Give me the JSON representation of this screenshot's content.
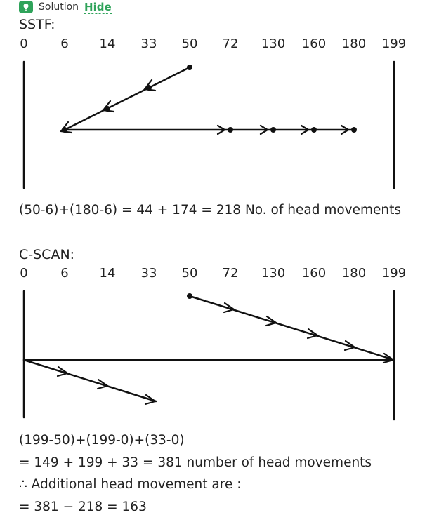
{
  "header": {
    "solution_label": "Solution",
    "hide_label": "Hide",
    "badge_color": "#2fa35a"
  },
  "sstf": {
    "title": "SSTF:",
    "ticks": [
      "0",
      "6",
      "14",
      "33",
      "50",
      "72",
      "130",
      "160",
      "180",
      "199"
    ],
    "formula": "(50-6)+(180-6) = 44 + 174 = 218 No. of head movements"
  },
  "cscan": {
    "title": "C-SCAN:",
    "ticks": [
      "0",
      "6",
      "14",
      "33",
      "50",
      "72",
      "130",
      "160",
      "180",
      "199"
    ],
    "line1": "(199-50)+(199-0)+(33-0)",
    "line2": "= 149 + 199 + 33 = 381 number of head movements",
    "line3": "∴ Additional head movement are :",
    "line4": "= 381 − 218 = 163"
  }
}
